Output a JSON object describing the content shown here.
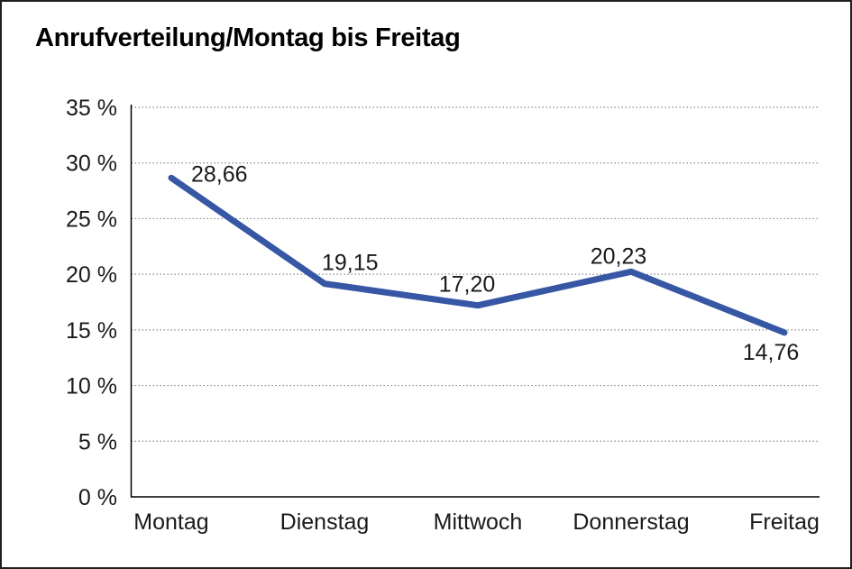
{
  "chart_data": {
    "type": "line",
    "title": "Anrufverteilung/Montag bis Freitag",
    "categories": [
      "Montag",
      "Dienstag",
      "Mittwoch",
      "Donnerstag",
      "Freitag"
    ],
    "values": [
      28.66,
      19.15,
      17.2,
      20.23,
      14.76
    ],
    "value_labels": [
      "28,66",
      "19,15",
      "17,20",
      "20,23",
      "14,76"
    ],
    "y_ticks": [
      0,
      5,
      10,
      15,
      20,
      25,
      30,
      35
    ],
    "y_tick_labels": [
      "0 %",
      "5 %",
      "10 %",
      "15 %",
      "20 %",
      "25 %",
      "30 %",
      "35 %"
    ],
    "ylim": [
      0,
      35
    ],
    "xlabel": "",
    "ylabel": "",
    "grid": "horizontal-dotted",
    "legend": "none"
  },
  "colors": {
    "line": "#3757A5",
    "grid": "#8a8a8a",
    "axis": "#000000",
    "text": "#1a1a1a",
    "background": "#ffffff",
    "frame": "#1f1f1f"
  }
}
